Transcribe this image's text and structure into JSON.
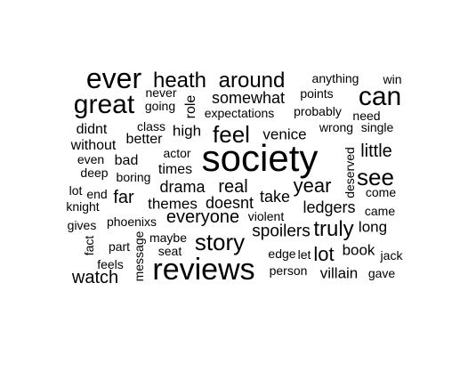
{
  "word_cloud": {
    "text_color": "#000000",
    "background": "#ffffff",
    "words": [
      {
        "text": "society",
        "vertical": false
      },
      {
        "text": "reviews",
        "vertical": false
      },
      {
        "text": "ever",
        "vertical": false
      },
      {
        "text": "great",
        "vertical": false
      },
      {
        "text": "can",
        "vertical": false
      },
      {
        "text": "heath",
        "vertical": false
      },
      {
        "text": "around",
        "vertical": false
      },
      {
        "text": "feel",
        "vertical": false
      },
      {
        "text": "see",
        "vertical": false
      },
      {
        "text": "story",
        "vertical": false
      },
      {
        "text": "truly",
        "vertical": false
      },
      {
        "text": "lot",
        "vertical": false
      },
      {
        "text": "year",
        "vertical": false
      },
      {
        "text": "real",
        "vertical": false
      },
      {
        "text": "everyone",
        "vertical": false
      },
      {
        "text": "watch",
        "vertical": false
      },
      {
        "text": "spoilers",
        "vertical": false
      },
      {
        "text": "little",
        "vertical": false
      },
      {
        "text": "ledgers",
        "vertical": false
      },
      {
        "text": "somewhat",
        "vertical": false
      },
      {
        "text": "drama",
        "vertical": false
      },
      {
        "text": "far",
        "vertical": false
      },
      {
        "text": "doesnt",
        "vertical": false
      },
      {
        "text": "take",
        "vertical": false
      },
      {
        "text": "themes",
        "vertical": false
      },
      {
        "text": "venice",
        "vertical": false
      },
      {
        "text": "long",
        "vertical": false
      },
      {
        "text": "book",
        "vertical": false
      },
      {
        "text": "villain",
        "vertical": false
      },
      {
        "text": "high",
        "vertical": false
      },
      {
        "text": "better",
        "vertical": false
      },
      {
        "text": "times",
        "vertical": false
      },
      {
        "text": "bad",
        "vertical": false
      },
      {
        "text": "didnt",
        "vertical": false
      },
      {
        "text": "without",
        "vertical": false
      },
      {
        "text": "role",
        "vertical": true
      },
      {
        "text": "anything",
        "vertical": false
      },
      {
        "text": "win",
        "vertical": false
      },
      {
        "text": "never",
        "vertical": false
      },
      {
        "text": "going",
        "vertical": false
      },
      {
        "text": "points",
        "vertical": false
      },
      {
        "text": "expectations",
        "vertical": false
      },
      {
        "text": "probably",
        "vertical": false
      },
      {
        "text": "need",
        "vertical": false
      },
      {
        "text": "class",
        "vertical": false
      },
      {
        "text": "wrong",
        "vertical": false
      },
      {
        "text": "single",
        "vertical": false
      },
      {
        "text": "actor",
        "vertical": false
      },
      {
        "text": "even",
        "vertical": false
      },
      {
        "text": "deep",
        "vertical": false
      },
      {
        "text": "boring",
        "vertical": false
      },
      {
        "text": "deserved",
        "vertical": true
      },
      {
        "text": "come",
        "vertical": false
      },
      {
        "text": "lot",
        "vertical": false
      },
      {
        "text": "end",
        "vertical": false
      },
      {
        "text": "knight",
        "vertical": false
      },
      {
        "text": "came",
        "vertical": false
      },
      {
        "text": "gives",
        "vertical": false
      },
      {
        "text": "phoenixs",
        "vertical": false
      },
      {
        "text": "violent",
        "vertical": false
      },
      {
        "text": "fact",
        "vertical": true
      },
      {
        "text": "part",
        "vertical": false
      },
      {
        "text": "maybe",
        "vertical": false
      },
      {
        "text": "seat",
        "vertical": false
      },
      {
        "text": "message",
        "vertical": true
      },
      {
        "text": "edge",
        "vertical": false
      },
      {
        "text": "let",
        "vertical": false
      },
      {
        "text": "jack",
        "vertical": false
      },
      {
        "text": "feels",
        "vertical": false
      },
      {
        "text": "person",
        "vertical": false
      },
      {
        "text": "gave",
        "vertical": false
      }
    ]
  }
}
